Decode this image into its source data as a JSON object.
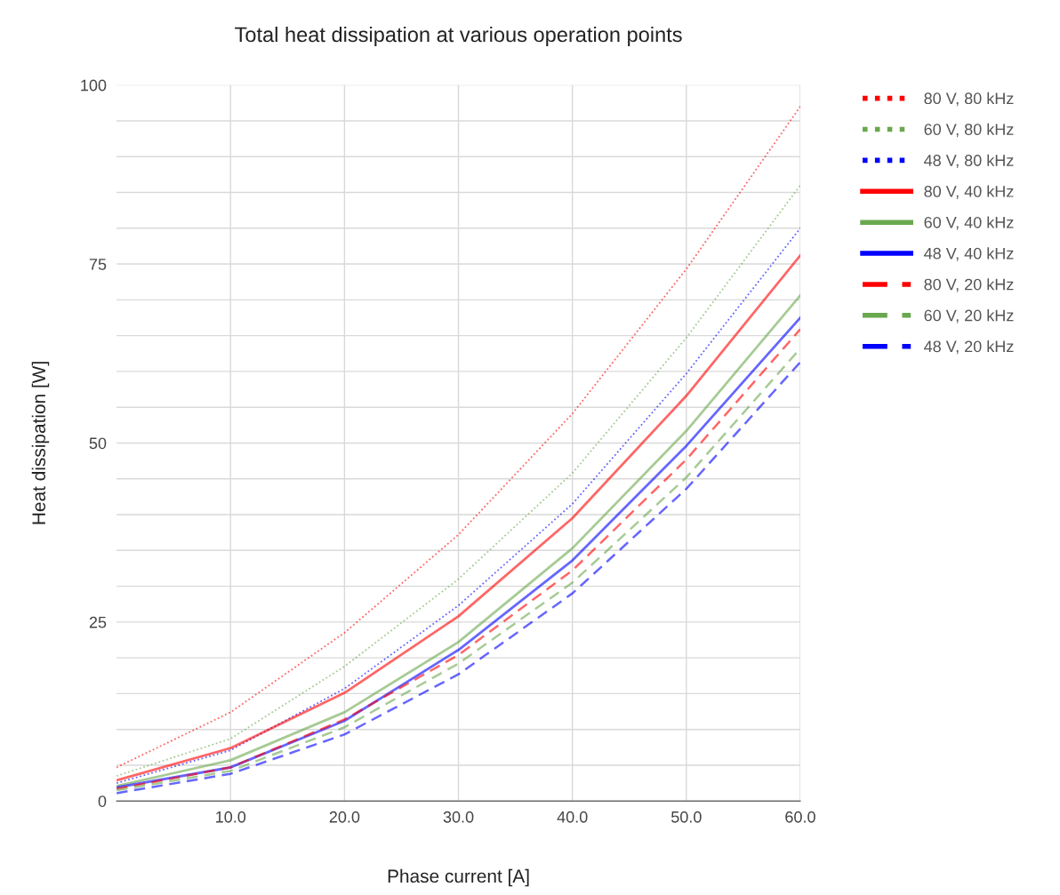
{
  "chart_data": {
    "type": "line",
    "title": "Total heat dissipation at various operation points",
    "xlabel": "Phase current [A]",
    "ylabel": "Heat dissipation [W]",
    "x": [
      0,
      10,
      20,
      30,
      40,
      50,
      60
    ],
    "xlim": [
      0,
      60
    ],
    "xticks": [
      {
        "value": 10,
        "label": "10.0"
      },
      {
        "value": 20,
        "label": "20.0"
      },
      {
        "value": 30,
        "label": "30.0"
      },
      {
        "value": 40,
        "label": "40.0"
      },
      {
        "value": 50,
        "label": "50.0"
      },
      {
        "value": 60,
        "label": "60.0"
      }
    ],
    "ylim": [
      0,
      100
    ],
    "yticks": [
      0,
      {
        "value": 5,
        "label": null
      },
      {
        "value": 10,
        "label": null
      },
      {
        "value": 15,
        "label": null
      },
      {
        "value": 20,
        "label": null
      },
      25,
      {
        "value": 30,
        "label": null
      },
      {
        "value": 35,
        "label": null
      },
      {
        "value": 40,
        "label": null
      },
      {
        "value": 45,
        "label": null
      },
      50,
      {
        "value": 55,
        "label": null
      },
      {
        "value": 60,
        "label": null
      },
      {
        "value": 65,
        "label": null
      },
      {
        "value": 70,
        "label": null
      },
      75,
      {
        "value": 80,
        "label": null
      },
      {
        "value": 85,
        "label": null
      },
      {
        "value": 90,
        "label": null
      },
      {
        "value": 95,
        "label": null
      },
      100
    ],
    "grid": true,
    "legend": "top right",
    "series": [
      {
        "name": "80 V, 80 kHz",
        "color": "#ff0000",
        "line_style": "dotted",
        "values": [
          4.7,
          12.4,
          23.5,
          37.2,
          54.1,
          74.3,
          97
        ]
      },
      {
        "name": "60 V, 80 kHz",
        "color": "#6aa84f",
        "line_style": "dotted",
        "values": [
          3.5,
          8.7,
          18.8,
          31,
          45.8,
          64.7,
          86
        ]
      },
      {
        "name": "48 V, 80 kHz",
        "color": "#0000ff",
        "line_style": "dotted",
        "values": [
          2.5,
          7.1,
          15.7,
          27.3,
          41.5,
          59.7,
          80
        ]
      },
      {
        "name": "80 V, 40 kHz",
        "color": "#ff0000",
        "line_style": "solid",
        "values": [
          2.9,
          7.4,
          15.1,
          25.8,
          39.5,
          56.6,
          76.2
        ]
      },
      {
        "name": "60 V, 40 kHz",
        "color": "#6aa84f",
        "line_style": "solid",
        "values": [
          2.1,
          5.7,
          12.4,
          22.2,
          35.3,
          51.7,
          70.6
        ]
      },
      {
        "name": "48 V, 40 kHz",
        "color": "#0000ff",
        "line_style": "solid",
        "values": [
          1.9,
          4.7,
          11.2,
          21.1,
          33.6,
          49.6,
          67.5
        ]
      },
      {
        "name": "80 V, 20 kHz",
        "color": "#ff0000",
        "line_style": "dashed",
        "values": [
          1.7,
          4.7,
          11.4,
          20.4,
          32.2,
          47.7,
          65.9
        ]
      },
      {
        "name": "60 V, 20 kHz",
        "color": "#6aa84f",
        "line_style": "dashed",
        "values": [
          1.5,
          4.2,
          10.3,
          19.2,
          30.5,
          45.2,
          63.2
        ]
      },
      {
        "name": "48 V, 20 kHz",
        "color": "#0000ff",
        "line_style": "dashed",
        "values": [
          1.1,
          3.8,
          9.3,
          17.7,
          29,
          43.6,
          61.3
        ]
      }
    ]
  }
}
